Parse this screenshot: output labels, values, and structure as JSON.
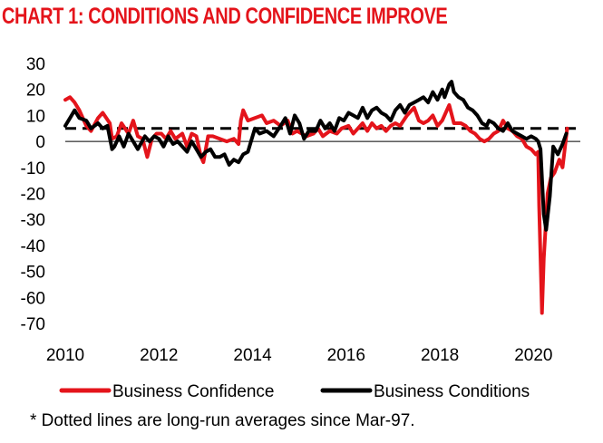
{
  "chart_data": {
    "type": "line",
    "title": "CHART 1: CONDITIONS AND CONFIDENCE IMPROVE",
    "title_color": "#e4141b",
    "xlabel": "",
    "ylabel": "",
    "x_tick_labels": [
      "2010",
      "2012",
      "2014",
      "2016",
      "2018",
      "2020"
    ],
    "x_ticks": [
      2010,
      2012,
      2014,
      2016,
      2018,
      2020
    ],
    "xlim": [
      2010,
      2021
    ],
    "y_ticks": [
      30,
      20,
      10,
      0,
      -10,
      -20,
      -30,
      -40,
      -50,
      -60,
      -70
    ],
    "ylim": [
      -70,
      30
    ],
    "series": [
      {
        "name": "Business Confidence",
        "color": "#e4141b",
        "long_run_average": 5,
        "points": [
          [
            2010.0,
            16
          ],
          [
            2010.1,
            17
          ],
          [
            2010.2,
            15
          ],
          [
            2010.3,
            12
          ],
          [
            2010.45,
            6
          ],
          [
            2010.55,
            4
          ],
          [
            2010.7,
            9
          ],
          [
            2010.8,
            11
          ],
          [
            2010.95,
            7
          ],
          [
            2011.0,
            1
          ],
          [
            2011.1,
            2
          ],
          [
            2011.2,
            7
          ],
          [
            2011.35,
            3
          ],
          [
            2011.45,
            8
          ],
          [
            2011.55,
            2
          ],
          [
            2011.65,
            1
          ],
          [
            2011.75,
            -6
          ],
          [
            2011.85,
            1
          ],
          [
            2011.95,
            3
          ],
          [
            2012.05,
            3
          ],
          [
            2012.15,
            1
          ],
          [
            2012.25,
            4
          ],
          [
            2012.35,
            1
          ],
          [
            2012.5,
            3
          ],
          [
            2012.6,
            -2
          ],
          [
            2012.7,
            3
          ],
          [
            2012.8,
            2
          ],
          [
            2012.9,
            -6
          ],
          [
            2012.95,
            -8
          ],
          [
            2013.05,
            2
          ],
          [
            2013.15,
            2
          ],
          [
            2013.3,
            1
          ],
          [
            2013.45,
            0
          ],
          [
            2013.6,
            1
          ],
          [
            2013.7,
            -1
          ],
          [
            2013.75,
            8
          ],
          [
            2013.8,
            12
          ],
          [
            2013.9,
            8
          ],
          [
            2014.05,
            9
          ],
          [
            2014.2,
            10
          ],
          [
            2014.3,
            7
          ],
          [
            2014.45,
            8
          ],
          [
            2014.6,
            6
          ],
          [
            2014.75,
            8
          ],
          [
            2014.85,
            3
          ],
          [
            2014.95,
            4
          ],
          [
            2015.05,
            3
          ],
          [
            2015.15,
            2
          ],
          [
            2015.3,
            3
          ],
          [
            2015.4,
            5
          ],
          [
            2015.5,
            2
          ],
          [
            2015.65,
            4
          ],
          [
            2015.8,
            3
          ],
          [
            2015.9,
            5
          ],
          [
            2016.05,
            6
          ],
          [
            2016.15,
            3
          ],
          [
            2016.25,
            5
          ],
          [
            2016.35,
            7
          ],
          [
            2016.45,
            4
          ],
          [
            2016.55,
            7
          ],
          [
            2016.65,
            5
          ],
          [
            2016.75,
            6
          ],
          [
            2016.85,
            4
          ],
          [
            2016.95,
            6
          ],
          [
            2017.05,
            7
          ],
          [
            2017.15,
            6
          ],
          [
            2017.3,
            10
          ],
          [
            2017.45,
            13
          ],
          [
            2017.55,
            8
          ],
          [
            2017.65,
            7
          ],
          [
            2017.75,
            8
          ],
          [
            2017.85,
            10
          ],
          [
            2017.95,
            6
          ],
          [
            2018.05,
            8
          ],
          [
            2018.15,
            12
          ],
          [
            2018.2,
            14
          ],
          [
            2018.3,
            7
          ],
          [
            2018.45,
            7
          ],
          [
            2018.55,
            6
          ],
          [
            2018.65,
            4
          ],
          [
            2018.75,
            3
          ],
          [
            2018.85,
            1
          ],
          [
            2018.95,
            0
          ],
          [
            2019.05,
            1
          ],
          [
            2019.15,
            3
          ],
          [
            2019.25,
            4
          ],
          [
            2019.35,
            8
          ],
          [
            2019.45,
            5
          ],
          [
            2019.55,
            4
          ],
          [
            2019.65,
            2
          ],
          [
            2019.75,
            1
          ],
          [
            2019.85,
            -2
          ],
          [
            2019.95,
            -3
          ],
          [
            2020.05,
            -5
          ],
          [
            2020.1,
            -4
          ],
          [
            2020.12,
            -25
          ],
          [
            2020.18,
            -66
          ],
          [
            2020.22,
            -45
          ],
          [
            2020.3,
            -20
          ],
          [
            2020.37,
            -14
          ],
          [
            2020.45,
            -12
          ],
          [
            2020.55,
            -7
          ],
          [
            2020.62,
            -10
          ],
          [
            2020.72,
            5
          ]
        ]
      },
      {
        "name": "Business Conditions",
        "color": "#000000",
        "long_run_average": 5,
        "points": [
          [
            2010.0,
            6
          ],
          [
            2010.1,
            9
          ],
          [
            2010.2,
            12
          ],
          [
            2010.3,
            9
          ],
          [
            2010.45,
            8
          ],
          [
            2010.55,
            5
          ],
          [
            2010.7,
            7
          ],
          [
            2010.8,
            5
          ],
          [
            2010.9,
            6
          ],
          [
            2011.0,
            -3
          ],
          [
            2011.05,
            -2
          ],
          [
            2011.15,
            2
          ],
          [
            2011.25,
            -2
          ],
          [
            2011.35,
            3
          ],
          [
            2011.45,
            0
          ],
          [
            2011.55,
            -3
          ],
          [
            2011.7,
            2
          ],
          [
            2011.8,
            0
          ],
          [
            2011.9,
            2
          ],
          [
            2012.0,
            1
          ],
          [
            2012.1,
            -2
          ],
          [
            2012.2,
            2
          ],
          [
            2012.3,
            -1
          ],
          [
            2012.4,
            0
          ],
          [
            2012.5,
            -2
          ],
          [
            2012.6,
            -4
          ],
          [
            2012.7,
            0
          ],
          [
            2012.8,
            -3
          ],
          [
            2012.9,
            -6
          ],
          [
            2013.0,
            -4
          ],
          [
            2013.1,
            -3
          ],
          [
            2013.2,
            -6
          ],
          [
            2013.3,
            -6
          ],
          [
            2013.4,
            -5
          ],
          [
            2013.5,
            -9
          ],
          [
            2013.6,
            -7
          ],
          [
            2013.7,
            -8
          ],
          [
            2013.8,
            -5
          ],
          [
            2013.9,
            -4
          ],
          [
            2014.05,
            5
          ],
          [
            2014.15,
            3
          ],
          [
            2014.3,
            4
          ],
          [
            2014.45,
            2
          ],
          [
            2014.6,
            6
          ],
          [
            2014.7,
            9
          ],
          [
            2014.8,
            3
          ],
          [
            2014.9,
            10
          ],
          [
            2015.0,
            7
          ],
          [
            2015.1,
            1
          ],
          [
            2015.2,
            4
          ],
          [
            2015.35,
            4
          ],
          [
            2015.45,
            8
          ],
          [
            2015.55,
            5
          ],
          [
            2015.65,
            7
          ],
          [
            2015.75,
            4
          ],
          [
            2015.85,
            9
          ],
          [
            2015.95,
            8
          ],
          [
            2016.05,
            11
          ],
          [
            2016.15,
            10
          ],
          [
            2016.25,
            9
          ],
          [
            2016.35,
            13
          ],
          [
            2016.45,
            9
          ],
          [
            2016.55,
            12
          ],
          [
            2016.65,
            13
          ],
          [
            2016.75,
            11
          ],
          [
            2016.85,
            10
          ],
          [
            2016.95,
            8
          ],
          [
            2017.05,
            12
          ],
          [
            2017.15,
            14
          ],
          [
            2017.25,
            11
          ],
          [
            2017.35,
            14
          ],
          [
            2017.45,
            15
          ],
          [
            2017.55,
            16
          ],
          [
            2017.65,
            17
          ],
          [
            2017.75,
            15
          ],
          [
            2017.85,
            19
          ],
          [
            2017.95,
            16
          ],
          [
            2018.05,
            20
          ],
          [
            2018.1,
            17
          ],
          [
            2018.2,
            22
          ],
          [
            2018.25,
            23
          ],
          [
            2018.3,
            19
          ],
          [
            2018.4,
            17
          ],
          [
            2018.5,
            16
          ],
          [
            2018.6,
            13
          ],
          [
            2018.7,
            12
          ],
          [
            2018.8,
            10
          ],
          [
            2018.9,
            7
          ],
          [
            2019.0,
            6
          ],
          [
            2019.05,
            8
          ],
          [
            2019.15,
            7
          ],
          [
            2019.25,
            5
          ],
          [
            2019.35,
            4
          ],
          [
            2019.45,
            7
          ],
          [
            2019.55,
            4
          ],
          [
            2019.65,
            3
          ],
          [
            2019.75,
            2
          ],
          [
            2019.85,
            1
          ],
          [
            2019.95,
            2
          ],
          [
            2020.05,
            1
          ],
          [
            2020.1,
            0
          ],
          [
            2020.15,
            -3
          ],
          [
            2020.22,
            -28
          ],
          [
            2020.27,
            -34
          ],
          [
            2020.35,
            -21
          ],
          [
            2020.42,
            -2
          ],
          [
            2020.52,
            -5
          ],
          [
            2020.62,
            -1
          ],
          [
            2020.7,
            3
          ]
        ]
      }
    ],
    "long_run_average_style": "dashed",
    "legend_position": "bottom",
    "footnote": "* Dotted lines are long-run averages since Mar-97."
  }
}
